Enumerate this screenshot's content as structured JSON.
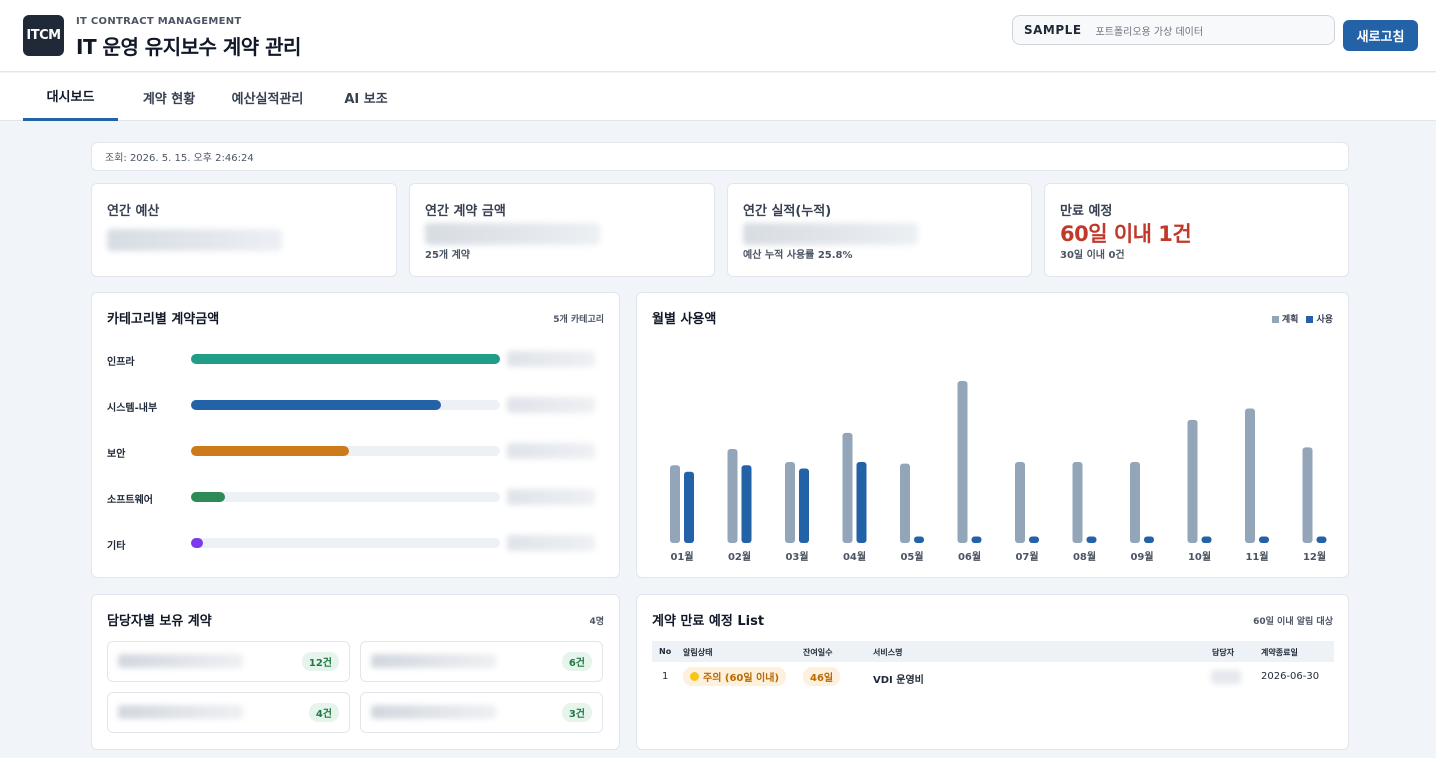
{
  "header": {
    "logo": "ITCM",
    "subtitle": "IT CONTRACT MANAGEMENT",
    "title": "IT 운영 유지보수 계약 관리",
    "sample_label": "SAMPLE",
    "sample_desc": "포트폴리오용 가상 데이터",
    "refresh_label": "새로고침"
  },
  "tabs": [
    {
      "label": "대시보드",
      "active": true
    },
    {
      "label": "계약 현황",
      "active": false
    },
    {
      "label": "예산실적관리",
      "active": false
    },
    {
      "label": "AI 보조",
      "active": false
    }
  ],
  "query_text": "조회: 2026. 5. 15. 오후 2:46:24",
  "kpis": {
    "budget": {
      "label": "연간 예산"
    },
    "contract": {
      "label": "연간 계약 금액",
      "sub": "25개 계약"
    },
    "actual": {
      "label": "연간 실적(누적)",
      "sub": "예산 누적 사용률 25.8%"
    },
    "expiry": {
      "label": "만료 예정",
      "big": "60일 이내 1건",
      "sub": "30일 이내 0건"
    }
  },
  "category_panel": {
    "title": "카테고리별 계약금액",
    "meta": "5개 카테고리",
    "items": [
      {
        "label": "인프라",
        "fraction": 1.0,
        "color": "#1f9d86"
      },
      {
        "label": "시스템-내부",
        "fraction": 0.81,
        "color": "#2462a8"
      },
      {
        "label": "보안",
        "fraction": 0.51,
        "color": "#cc7a1a"
      },
      {
        "label": "소프트웨어",
        "fraction": 0.11,
        "color": "#2e8a57"
      },
      {
        "label": "기타",
        "fraction": 0.04,
        "color": "#7c3aed"
      }
    ]
  },
  "monthly_panel": {
    "title": "월별 사용액",
    "legend_plan": "계획",
    "legend_used": "사용"
  },
  "chart_data": {
    "type": "bar",
    "categories": [
      "01월",
      "02월",
      "03월",
      "04월",
      "05월",
      "06월",
      "07월",
      "08월",
      "09월",
      "10월",
      "11월",
      "12월"
    ],
    "series": [
      {
        "name": "계획",
        "values": [
          48,
          58,
          50,
          68,
          49,
          100,
          50,
          50,
          50,
          76,
          83,
          59
        ],
        "color": "#93a5b8"
      },
      {
        "name": "사용",
        "values": [
          44,
          48,
          46,
          50,
          4,
          4,
          4,
          4,
          4,
          4,
          4,
          4
        ],
        "color": "#2462a8"
      }
    ],
    "legend": "top-right",
    "grid": false
  },
  "owner_panel": {
    "title": "담당자별 보유 계약",
    "meta": "4명",
    "owners": [
      {
        "count": "12건"
      },
      {
        "count": "6건"
      },
      {
        "count": "4건"
      },
      {
        "count": "3건"
      }
    ]
  },
  "expiry_panel": {
    "title": "계약 만료 예정 List",
    "meta": "60일 이내 알림 대상",
    "columns": [
      "No",
      "알림상태",
      "잔여일수",
      "서비스명",
      "담당자",
      "계약종료일"
    ],
    "rows": [
      {
        "no": "1",
        "status": "주의 (60일 이내)",
        "days": "46일",
        "service": "VDI 운영비",
        "end_date": "2026-06-30"
      }
    ]
  },
  "colors": {
    "accent": "#2462a8",
    "warning": "#c0392b"
  }
}
